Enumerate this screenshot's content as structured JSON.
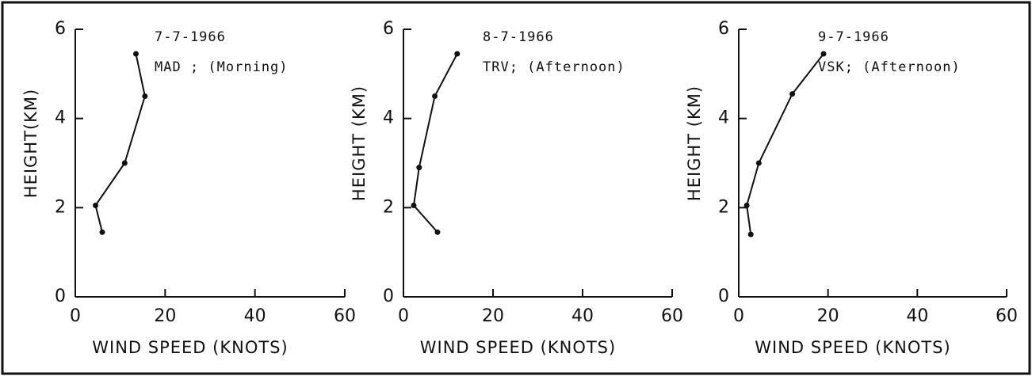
{
  "chart_data": [
    {
      "type": "line",
      "title": "7-7-1966",
      "subtitle": "MAD ; (Morning)",
      "xlabel": "WIND SPEED (KNOTS)",
      "ylabel": "HEIGHT(KM)",
      "x": [
        13.5,
        15.5,
        11,
        4.5,
        6
      ],
      "values": [
        5.45,
        4.5,
        3.0,
        2.05,
        1.45
      ],
      "color": "#111111",
      "xlim": [
        0,
        60
      ],
      "ylim": [
        0,
        6
      ],
      "xticks": [
        0,
        20,
        40,
        60
      ],
      "yticks": [
        0,
        2,
        4,
        6
      ]
    },
    {
      "type": "line",
      "title": "8-7-1966",
      "subtitle": "TRV; (Afternoon)",
      "xlabel": "WIND SPEED (KNOTS)",
      "ylabel": "HEIGHT (KM)",
      "x": [
        12,
        7,
        3.5,
        2.3,
        7.6
      ],
      "values": [
        5.45,
        4.5,
        2.9,
        2.05,
        1.45
      ],
      "color": "#111111",
      "xlim": [
        0,
        60
      ],
      "ylim": [
        0,
        6
      ],
      "xticks": [
        0,
        20,
        40,
        60
      ],
      "yticks": [
        0,
        2,
        4,
        6
      ]
    },
    {
      "type": "line",
      "title": "9-7-1966",
      "subtitle": "VSK; (Afternoon)",
      "xlabel": "WIND SPEED (KNOTS)",
      "ylabel": "HEIGHT (KM)",
      "x": [
        19,
        12,
        4.5,
        1.8,
        2.7
      ],
      "values": [
        5.45,
        4.55,
        3.0,
        2.05,
        1.4
      ],
      "color": "#111111",
      "xlim": [
        0,
        60
      ],
      "ylim": [
        0,
        6
      ],
      "xticks": [
        0,
        20,
        40,
        60
      ],
      "yticks": [
        0,
        2,
        4,
        6
      ]
    }
  ]
}
